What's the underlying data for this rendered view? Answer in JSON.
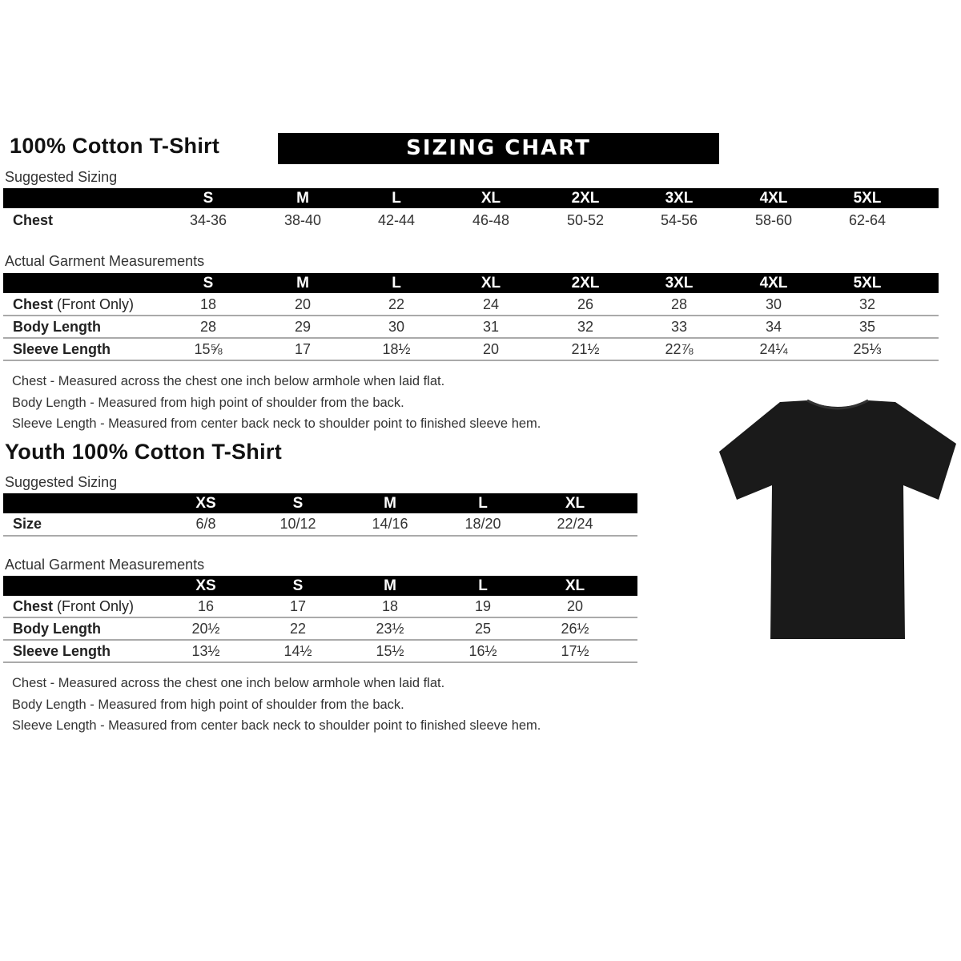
{
  "adult": {
    "title": "100% Cotton T-Shirt",
    "banner": "SIZING CHART",
    "suggested_label": "Suggested Sizing",
    "sizes": [
      "S",
      "M",
      "L",
      "XL",
      "2XL",
      "3XL",
      "4XL",
      "5XL"
    ],
    "suggested_rows": [
      {
        "label": "Chest",
        "values": [
          "34-36",
          "38-40",
          "42-44",
          "46-48",
          "50-52",
          "54-56",
          "58-60",
          "62-64"
        ]
      }
    ],
    "actual_label": "Actual Garment Measurements",
    "actual_rows": [
      {
        "label": "Chest",
        "label_extra": "(Front Only)",
        "values": [
          "18",
          "20",
          "22",
          "24",
          "26",
          "28",
          "30",
          "32"
        ]
      },
      {
        "label": "Body Length",
        "label_extra": "",
        "values": [
          "28",
          "29",
          "30",
          "31",
          "32",
          "33",
          "34",
          "35"
        ]
      },
      {
        "label": "Sleeve Length",
        "label_extra": "",
        "values": [
          "15⅝",
          "17",
          "18½",
          "20",
          "21½",
          "22⅞",
          "24¼",
          "25⅓"
        ]
      }
    ],
    "notes": [
      "Chest - Measured across the chest one inch below armhole when laid flat.",
      "Body Length - Measured from high point of shoulder from the back.",
      "Sleeve Length - Measured from center back neck to shoulder point to finished sleeve hem."
    ]
  },
  "youth": {
    "title": "Youth 100% Cotton T-Shirt",
    "suggested_label": "Suggested Sizing",
    "sizes": [
      "XS",
      "S",
      "M",
      "L",
      "XL"
    ],
    "suggested_rows": [
      {
        "label": "Size",
        "values": [
          "6/8",
          "10/12",
          "14/16",
          "18/20",
          "22/24"
        ]
      }
    ],
    "actual_label": "Actual Garment Measurements",
    "actual_rows": [
      {
        "label": "Chest",
        "label_extra": "(Front Only)",
        "values": [
          "16",
          "17",
          "18",
          "19",
          "20"
        ]
      },
      {
        "label": "Body Length",
        "label_extra": "",
        "values": [
          "20½",
          "22",
          "23½",
          "25",
          "26½"
        ]
      },
      {
        "label": "Sleeve Length",
        "label_extra": "",
        "values": [
          "13½",
          "14½",
          "15½",
          "16½",
          "17½"
        ]
      }
    ],
    "notes": [
      "Chest - Measured across the chest one inch below armhole when laid flat.",
      "Body Length - Measured from high point of shoulder from the back.",
      "Sleeve Length - Measured from center back neck to shoulder point to finished sleeve hem."
    ]
  },
  "image": {
    "icon": "black-t-shirt",
    "color": "#1a1a1a"
  }
}
